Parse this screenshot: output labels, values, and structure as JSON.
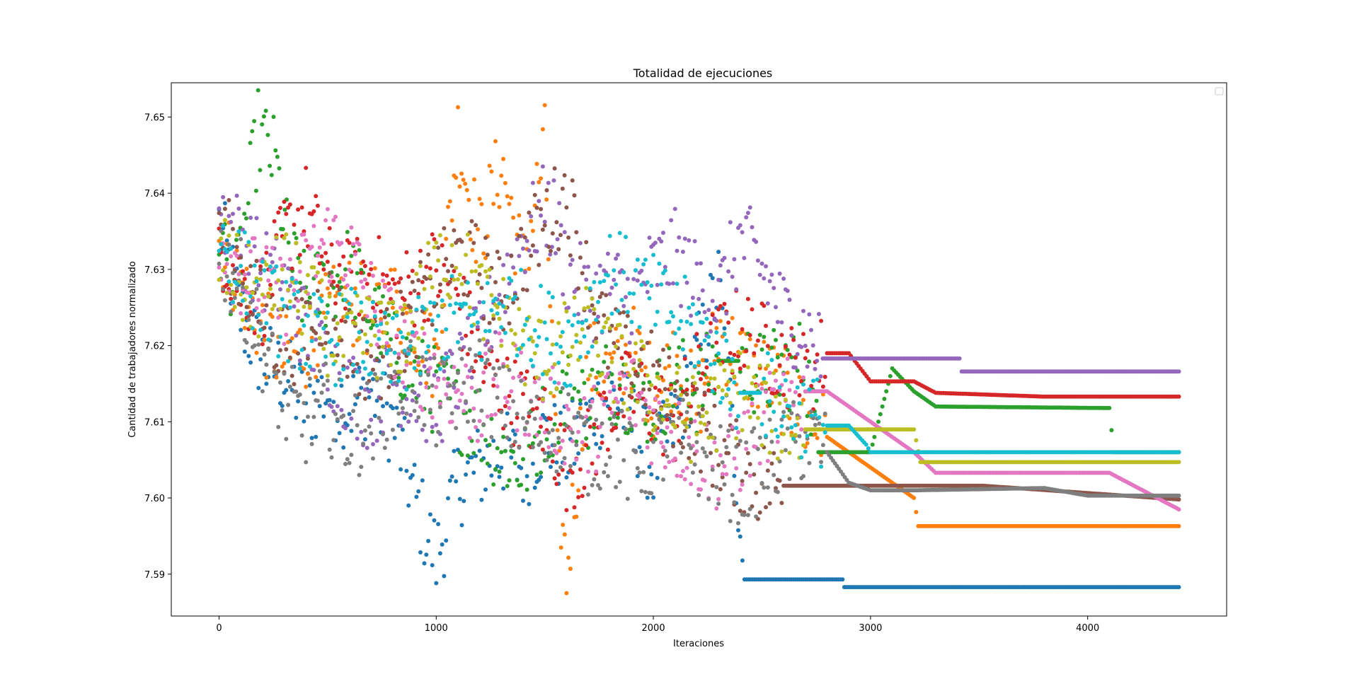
{
  "chart_data": {
    "type": "scatter",
    "title": "Totalidad de ejecuciones",
    "xlabel": "Iteraciones",
    "ylabel": "Cantidad de trabajadores normalizado",
    "xlim": [
      -220,
      4640
    ],
    "ylim": [
      7.5845,
      7.6545
    ],
    "x_ticks": [
      0,
      1000,
      2000,
      3000,
      4000
    ],
    "x_tick_labels": [
      "0",
      "1000",
      "2000",
      "3000",
      "4000"
    ],
    "y_ticks": [
      7.59,
      7.6,
      7.61,
      7.62,
      7.63,
      7.64,
      7.65
    ],
    "y_tick_labels": [
      "7.59",
      "7.60",
      "7.61",
      "7.62",
      "7.63",
      "7.64",
      "7.65"
    ],
    "grid": false,
    "legend": "top-right",
    "marker_size": 3,
    "series": [
      {
        "color": "#1f77b4",
        "x": [
          0,
          100,
          200,
          300,
          400,
          500,
          600,
          700,
          800,
          900,
          1000,
          1100,
          1200,
          1300,
          1400,
          1500,
          1600,
          1700,
          1800,
          1900,
          2000,
          2100,
          2200,
          2300,
          2400,
          2420,
          2880,
          2880,
          4420
        ],
        "y": [
          7.636,
          7.624,
          7.618,
          7.616,
          7.612,
          7.614,
          7.612,
          7.614,
          7.61,
          7.6,
          7.592,
          7.602,
          7.604,
          7.606,
          7.604,
          7.608,
          7.606,
          7.61,
          7.614,
          7.61,
          7.604,
          7.61,
          7.618,
          7.628,
          7.598,
          7.5893,
          7.5893,
          7.5883,
          7.5883
        ]
      },
      {
        "color": "#ff7f0e",
        "x": [
          0,
          100,
          200,
          300,
          400,
          500,
          600,
          700,
          800,
          900,
          1000,
          1100,
          1150,
          1200,
          1300,
          1400,
          1500,
          1550,
          1600,
          1700,
          1800,
          1900,
          2000,
          2100,
          2200,
          2300,
          2400,
          2500,
          2600,
          2700,
          2800,
          2900,
          3000,
          3100,
          3200,
          3220,
          4420
        ],
        "y": [
          7.634,
          7.628,
          7.622,
          7.618,
          7.62,
          7.624,
          7.626,
          7.624,
          7.626,
          7.622,
          7.618,
          7.648,
          7.64,
          7.634,
          7.644,
          7.63,
          7.646,
          7.606,
          7.59,
          7.618,
          7.616,
          7.62,
          7.614,
          7.618,
          7.612,
          7.622,
          7.618,
          7.616,
          7.614,
          7.61,
          7.608,
          7.606,
          7.604,
          7.602,
          7.6,
          7.5963,
          7.5963
        ]
      },
      {
        "color": "#2ca02c",
        "x": [
          0,
          80,
          180,
          260,
          320,
          400,
          500,
          600,
          700,
          800,
          900,
          1000,
          1100,
          1200,
          1300,
          1400,
          1500,
          1600,
          1700,
          1800,
          1900,
          2000,
          2100,
          2200,
          2300,
          2400,
          2500,
          2600,
          2700,
          2760,
          3000,
          3100,
          3200,
          3300,
          4100,
          4120,
          4420
        ],
        "y": [
          7.634,
          7.628,
          7.648,
          7.644,
          7.632,
          7.626,
          7.628,
          7.63,
          7.624,
          7.62,
          7.616,
          7.614,
          7.612,
          7.61,
          7.606,
          7.604,
          7.61,
          7.614,
          7.612,
          7.616,
          7.614,
          7.612,
          7.616,
          7.614,
          7.618,
          7.618,
          7.616,
          7.617,
          7.618,
          7.606,
          7.606,
          7.617,
          7.614,
          7.612,
          7.6118,
          7.606,
          7.606
        ]
      },
      {
        "color": "#d62728",
        "x": [
          0,
          100,
          200,
          300,
          400,
          500,
          600,
          700,
          800,
          900,
          1000,
          1100,
          1200,
          1300,
          1400,
          1500,
          1600,
          1700,
          1800,
          1900,
          2000,
          2100,
          2200,
          2300,
          2400,
          2500,
          2600,
          2700,
          2800,
          2900,
          3000,
          3200,
          3300,
          3800,
          4420
        ],
        "y": [
          7.634,
          7.628,
          7.626,
          7.634,
          7.638,
          7.63,
          7.628,
          7.63,
          7.626,
          7.628,
          7.63,
          7.626,
          7.618,
          7.614,
          7.612,
          7.61,
          7.604,
          7.606,
          7.612,
          7.614,
          7.612,
          7.61,
          7.616,
          7.62,
          7.622,
          7.62,
          7.618,
          7.616,
          7.619,
          7.619,
          7.6153,
          7.6153,
          7.6138,
          7.6133,
          7.6133
        ]
      },
      {
        "color": "#9467bd",
        "x": [
          0,
          100,
          200,
          300,
          400,
          500,
          600,
          700,
          800,
          900,
          1000,
          1100,
          1200,
          1300,
          1400,
          1500,
          1550,
          1600,
          1700,
          1800,
          1900,
          2000,
          2100,
          2200,
          2300,
          2400,
          2500,
          2600,
          2700,
          2780,
          3410,
          3420,
          4420
        ],
        "y": [
          7.638,
          7.634,
          7.63,
          7.628,
          7.622,
          7.618,
          7.614,
          7.612,
          7.616,
          7.614,
          7.612,
          7.616,
          7.62,
          7.628,
          7.634,
          7.638,
          7.636,
          7.63,
          7.626,
          7.628,
          7.626,
          7.63,
          7.632,
          7.628,
          7.626,
          7.634,
          7.63,
          7.624,
          7.622,
          7.6183,
          7.6183,
          7.6166,
          7.6166
        ]
      },
      {
        "color": "#8c564b",
        "x": [
          0,
          100,
          200,
          300,
          400,
          500,
          600,
          700,
          800,
          900,
          1000,
          1100,
          1200,
          1300,
          1400,
          1500,
          1600,
          1700,
          1800,
          1900,
          2000,
          2100,
          2200,
          2300,
          2400,
          2500,
          2600,
          3520,
          4420
        ],
        "y": [
          7.636,
          7.63,
          7.624,
          7.62,
          7.622,
          7.626,
          7.62,
          7.618,
          7.62,
          7.624,
          7.628,
          7.632,
          7.63,
          7.626,
          7.632,
          7.636,
          7.64,
          7.628,
          7.62,
          7.618,
          7.616,
          7.612,
          7.61,
          7.606,
          7.604,
          7.602,
          7.6016,
          7.6016,
          7.5998
        ]
      },
      {
        "color": "#e377c2",
        "x": [
          0,
          100,
          200,
          300,
          400,
          500,
          600,
          700,
          800,
          900,
          1000,
          1100,
          1200,
          1300,
          1400,
          1500,
          1600,
          1700,
          1800,
          1900,
          2000,
          2100,
          2200,
          2300,
          2400,
          2500,
          2600,
          2700,
          2800,
          2900,
          3000,
          3100,
          3200,
          3300,
          4100,
          4420
        ],
        "y": [
          7.634,
          7.63,
          7.628,
          7.626,
          7.63,
          7.634,
          7.632,
          7.626,
          7.622,
          7.618,
          7.616,
          7.614,
          7.612,
          7.616,
          7.614,
          7.612,
          7.61,
          7.608,
          7.612,
          7.614,
          7.61,
          7.608,
          7.606,
          7.604,
          7.606,
          7.61,
          7.612,
          7.614,
          7.614,
          7.612,
          7.61,
          7.608,
          7.606,
          7.6033,
          7.6033,
          7.5985
        ]
      },
      {
        "color": "#7f7f7f",
        "x": [
          0,
          100,
          200,
          300,
          400,
          500,
          600,
          700,
          800,
          900,
          1000,
          1100,
          1200,
          1300,
          1400,
          1500,
          1600,
          1700,
          1800,
          1900,
          2000,
          2100,
          2200,
          2300,
          2400,
          2500,
          2600,
          2700,
          2800,
          2900,
          3000,
          3200,
          3800,
          4000,
          4420
        ],
        "y": [
          7.632,
          7.628,
          7.62,
          7.612,
          7.61,
          7.612,
          7.608,
          7.61,
          7.614,
          7.616,
          7.612,
          7.614,
          7.616,
          7.612,
          7.61,
          7.608,
          7.61,
          7.606,
          7.608,
          7.604,
          7.606,
          7.608,
          7.606,
          7.604,
          7.602,
          7.604,
          7.606,
          7.608,
          7.606,
          7.602,
          7.601,
          7.601,
          7.6013,
          7.6003,
          7.6003
        ]
      },
      {
        "color": "#bcbd22",
        "x": [
          0,
          100,
          200,
          300,
          400,
          500,
          600,
          700,
          800,
          900,
          1000,
          1100,
          1200,
          1300,
          1400,
          1500,
          1600,
          1700,
          1800,
          1900,
          2000,
          2100,
          2200,
          2300,
          2400,
          2500,
          2600,
          2700,
          2800,
          2900,
          3000,
          3200,
          3230,
          4420
        ],
        "y": [
          7.632,
          7.628,
          7.626,
          7.63,
          7.626,
          7.622,
          7.62,
          7.622,
          7.62,
          7.624,
          7.63,
          7.632,
          7.626,
          7.624,
          7.62,
          7.618,
          7.62,
          7.622,
          7.618,
          7.616,
          7.614,
          7.612,
          7.61,
          7.612,
          7.614,
          7.612,
          7.61,
          7.609,
          7.609,
          7.609,
          7.609,
          7.609,
          7.6047,
          7.6047
        ]
      },
      {
        "color": "#17becf",
        "x": [
          0,
          100,
          200,
          300,
          400,
          500,
          600,
          700,
          800,
          900,
          1000,
          1100,
          1200,
          1300,
          1400,
          1500,
          1600,
          1700,
          1800,
          1900,
          2000,
          2100,
          2200,
          2300,
          2400,
          2500,
          2600,
          2700,
          2800,
          2900,
          2980,
          3000,
          3300,
          4420
        ],
        "y": [
          7.634,
          7.63,
          7.626,
          7.624,
          7.622,
          7.62,
          7.622,
          7.62,
          7.618,
          7.62,
          7.622,
          7.624,
          7.622,
          7.626,
          7.624,
          7.622,
          7.62,
          7.624,
          7.63,
          7.628,
          7.626,
          7.624,
          7.622,
          7.618,
          7.6138,
          7.6138,
          7.612,
          7.611,
          7.6095,
          7.6095,
          7.607,
          7.606,
          7.606,
          7.606
        ]
      }
    ]
  }
}
